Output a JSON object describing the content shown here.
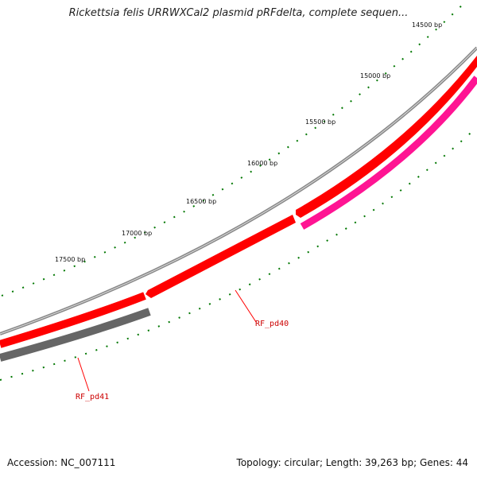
{
  "title": "Rickettsia felis URRWXCal2 plasmid pRFdelta, complete sequen...",
  "ruler": {
    "labels": [
      "14500 bp",
      "15000 bp",
      "15500 bp",
      "16000 bp",
      "16500 bp",
      "17000 bp",
      "17500 bp"
    ]
  },
  "genes": [
    {
      "label": "RF_pd40",
      "color": "#ff0000"
    },
    {
      "label": "RF_pd41",
      "color": "#666666"
    }
  ],
  "colors": {
    "backbone": "#888888",
    "forward_gene": "#ff0000",
    "reverse_gene": "#ff1493",
    "other_gene": "#666666",
    "ticks": "#007700",
    "gene_label": "#cc0000"
  },
  "footer": {
    "accession": "Accession: NC_007111",
    "stats": "Topology: circular; Length: 39,263 bp; Genes: 44"
  }
}
